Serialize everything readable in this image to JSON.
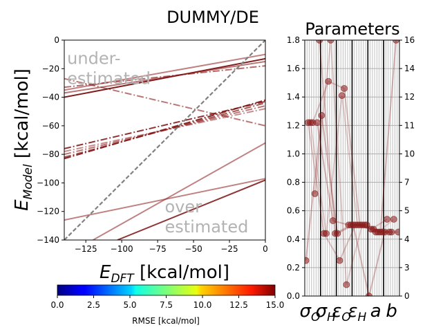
{
  "figure_title": "DUMMY/DE",
  "colors": {
    "parity": "#808080",
    "annotation": "#b3b3b3",
    "frame": "#000000",
    "grid": "#b0b0b0",
    "marker": "#8b1a1a"
  },
  "colorbar": {
    "label": "RMSE [kcal/mol]",
    "min": 0,
    "max": 15,
    "ticks": [
      "0.0",
      "2.5",
      "5.0",
      "7.5",
      "10.0",
      "12.5",
      "15.0"
    ],
    "colormap": "jet"
  },
  "chart_data": [
    {
      "type": "line",
      "title": "",
      "xlabel_main": "E",
      "xlabel_sub": "DFT",
      "xlabel_unit": "[kcal/mol]",
      "ylabel_main": "E",
      "ylabel_sub": "Model",
      "ylabel_unit": "[kcal/mol]",
      "xlim": [
        -140,
        0
      ],
      "ylim": [
        -140,
        0
      ],
      "xticks": [
        -125,
        -100,
        -75,
        -50,
        -25,
        0
      ],
      "yticks": [
        -140,
        -120,
        -100,
        -80,
        -60,
        -40,
        -20,
        0
      ],
      "annotations": [
        {
          "lines": [
            "under-",
            "estimated"
          ],
          "x": -138,
          "y": -8
        },
        {
          "lines": [
            "over",
            "estimated"
          ],
          "x": -70,
          "y": -112
        }
      ],
      "parity_line": {
        "x": [
          -140,
          0
        ],
        "y": [
          -140,
          0
        ],
        "style": "dashed"
      },
      "series": [
        {
          "x": [
            -140,
            0
          ],
          "y": [
            -40,
            -13
          ],
          "color": "#7a1010",
          "alpha": 0.95,
          "dash": "solid"
        },
        {
          "x": [
            -140,
            0
          ],
          "y": [
            -37,
            -15
          ],
          "color": "#8b1a1a",
          "alpha": 0.6,
          "dash": "solid"
        },
        {
          "x": [
            -140,
            0
          ],
          "y": [
            -35,
            -10
          ],
          "color": "#8b1a1a",
          "alpha": 0.55,
          "dash": "solid"
        },
        {
          "x": [
            -140,
            0
          ],
          "y": [
            -33,
            -18
          ],
          "color": "#8b1a1a",
          "alpha": 0.65,
          "dash": "dashdot"
        },
        {
          "x": [
            -140,
            0
          ],
          "y": [
            -27,
            -60
          ],
          "color": "#8b1a1a",
          "alpha": 0.6,
          "dash": "dashdot"
        },
        {
          "x": [
            -140,
            0
          ],
          "y": [
            -83,
            -42
          ],
          "color": "#7a1010",
          "alpha": 0.9,
          "dash": "dashdot"
        },
        {
          "x": [
            -140,
            0
          ],
          "y": [
            -82,
            -44
          ],
          "color": "#8b1a1a",
          "alpha": 0.75,
          "dash": "dashdot"
        },
        {
          "x": [
            -140,
            0
          ],
          "y": [
            -80,
            -46
          ],
          "color": "#8b1a1a",
          "alpha": 0.6,
          "dash": "dashdot"
        },
        {
          "x": [
            -140,
            0
          ],
          "y": [
            -78,
            -48
          ],
          "color": "#8b1a1a",
          "alpha": 0.5,
          "dash": "dashdot"
        },
        {
          "x": [
            -140,
            0
          ],
          "y": [
            -76,
            -43
          ],
          "color": "#7a1010",
          "alpha": 0.85,
          "dash": "dashdot"
        },
        {
          "x": [
            -140,
            0
          ],
          "y": [
            -126,
            -97
          ],
          "color": "#8b1a1a",
          "alpha": 0.55,
          "dash": "solid"
        },
        {
          "x": [
            -120,
            0
          ],
          "y": [
            -140,
            -72
          ],
          "color": "#8b1a1a",
          "alpha": 0.55,
          "dash": "solid"
        },
        {
          "x": [
            -103,
            0
          ],
          "y": [
            -140,
            -98
          ],
          "color": "#7a1010",
          "alpha": 0.85,
          "dash": "solid"
        }
      ]
    },
    {
      "type": "scatter",
      "title": "Parameters",
      "categories": [
        "σ_O",
        "σ_H",
        "ε_O",
        "ε_H",
        "a",
        "b"
      ],
      "category_labels": [
        {
          "main": "σ",
          "sub": "O"
        },
        {
          "main": "σ",
          "sub": "H"
        },
        {
          "main": "ε",
          "sub": "O"
        },
        {
          "main": "ε",
          "sub": "H"
        },
        {
          "main": "a",
          "sub": ""
        },
        {
          "main": "b",
          "sub": ""
        }
      ],
      "ylim_left": [
        0,
        1.8
      ],
      "yticks_left": [
        "0.0",
        "0.2",
        "0.4",
        "0.6",
        "0.8",
        "1.0",
        "1.2",
        "1.4",
        "1.6",
        "1.8"
      ],
      "yticks_right": [
        "0",
        "3",
        "4",
        "5",
        "7",
        "10",
        "11",
        "12",
        "14",
        "16"
      ],
      "grid": true,
      "points_per_category": 7,
      "values": [
        [
          0.25,
          1.22,
          1.22,
          1.22,
          0.72,
          1.22,
          1.8
        ],
        [
          1.27,
          0.44,
          0.44,
          1.51,
          1.8,
          0.53,
          0.44
        ],
        [
          0.44,
          0.25,
          1.41,
          1.46,
          0.08,
          0.5,
          0.5
        ],
        [
          0.5,
          0.5,
          0.5,
          0.5,
          0.5,
          0.5,
          0.5
        ],
        [
          0.0,
          0.47,
          0.47,
          0.45,
          0.45,
          0.45,
          0.45
        ],
        [
          0.45,
          0.54,
          0.45,
          0.45,
          0.54,
          1.8,
          0.45
        ]
      ]
    }
  ]
}
